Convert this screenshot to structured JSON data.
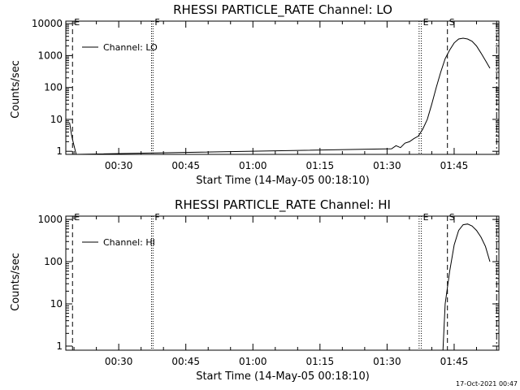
{
  "footer": {
    "timestamp": "17-Oct-2021 00:47"
  },
  "chart_data": [
    {
      "type": "line",
      "title": "RHESSI PARTICLE_RATE Channel: LO",
      "xlabel": "Start Time (14-May-05 00:18:10)",
      "ylabel": "Counts/sec",
      "y_scale": "log",
      "xlim": [
        "00:18:10",
        "01:55:00"
      ],
      "ylim": [
        0.8,
        12000
      ],
      "x_ticks": [
        "00:30",
        "00:45",
        "01:00",
        "01:15",
        "01:30",
        "01:45"
      ],
      "y_ticks": [
        "1",
        "10",
        "100",
        "1000",
        "10000"
      ],
      "legend": {
        "position": "top-left",
        "entries": [
          "Channel: LO"
        ]
      },
      "series": [
        {
          "name": "Channel: LO",
          "x": [
            "00:19:00",
            "00:19:30",
            "00:20:00",
            "00:20:30",
            "01:31:00",
            "01:32:00",
            "01:33:00",
            "01:34:00",
            "01:35:00",
            "01:36:00",
            "01:37:00",
            "01:38:00",
            "01:39:00",
            "01:40:00",
            "01:41:00",
            "01:42:00",
            "01:43:00",
            "01:44:00",
            "01:45:00",
            "01:46:00",
            "01:47:00",
            "01:48:00",
            "01:49:00",
            "01:50:00",
            "01:51:00",
            "01:52:00",
            "01:53:00"
          ],
          "values": [
            8,
            3,
            1.5,
            0.8,
            1.2,
            1.5,
            1.3,
            1.8,
            2,
            2.5,
            3,
            5,
            10,
            30,
            100,
            300,
            800,
            1500,
            2500,
            3300,
            3500,
            3300,
            2800,
            2000,
            1200,
            700,
            400
          ]
        }
      ],
      "event_markers": [
        {
          "label": "E",
          "time": "00:19:40",
          "style": "dashed"
        },
        {
          "label": "F",
          "time": "00:37:40",
          "style": "dotted"
        },
        {
          "label": "E",
          "time": "01:37:40",
          "style": "dotted"
        },
        {
          "label": "S",
          "time": "01:43:30",
          "style": "dashed"
        },
        {
          "label": "",
          "time": "00:37:20",
          "style": "dotted"
        },
        {
          "label": "",
          "time": "01:37:10",
          "style": "dotted"
        },
        {
          "label": "",
          "time": "01:54:30",
          "style": "dashdot"
        }
      ]
    },
    {
      "type": "line",
      "title": "RHESSI PARTICLE_RATE Channel: HI",
      "xlabel": "Start Time (14-May-05 00:18:10)",
      "ylabel": "Counts/sec",
      "y_scale": "log",
      "xlim": [
        "00:18:10",
        "01:55:00"
      ],
      "ylim": [
        0.8,
        1200
      ],
      "x_ticks": [
        "00:30",
        "00:45",
        "01:00",
        "01:15",
        "01:30",
        "01:45"
      ],
      "y_ticks": [
        "1",
        "10",
        "100",
        "1000"
      ],
      "legend": {
        "position": "top-left",
        "entries": [
          "Channel: HI"
        ]
      },
      "series": [
        {
          "name": "Channel: HI",
          "x": [
            "01:42:30",
            "01:43:00",
            "01:44:00",
            "01:45:00",
            "01:46:00",
            "01:47:00",
            "01:48:00",
            "01:49:00",
            "01:50:00",
            "01:51:00",
            "01:52:00",
            "01:53:00"
          ],
          "values": [
            0.8,
            10,
            60,
            250,
            550,
            750,
            780,
            700,
            550,
            380,
            230,
            100
          ]
        }
      ],
      "event_markers": [
        {
          "label": "E",
          "time": "00:19:40",
          "style": "dashed"
        },
        {
          "label": "F",
          "time": "00:37:40",
          "style": "dotted"
        },
        {
          "label": "E",
          "time": "01:37:40",
          "style": "dotted"
        },
        {
          "label": "S",
          "time": "01:43:30",
          "style": "dashed"
        },
        {
          "label": "",
          "time": "00:37:20",
          "style": "dotted"
        },
        {
          "label": "",
          "time": "01:37:10",
          "style": "dotted"
        },
        {
          "label": "",
          "time": "01:54:30",
          "style": "dashdot"
        }
      ]
    }
  ]
}
